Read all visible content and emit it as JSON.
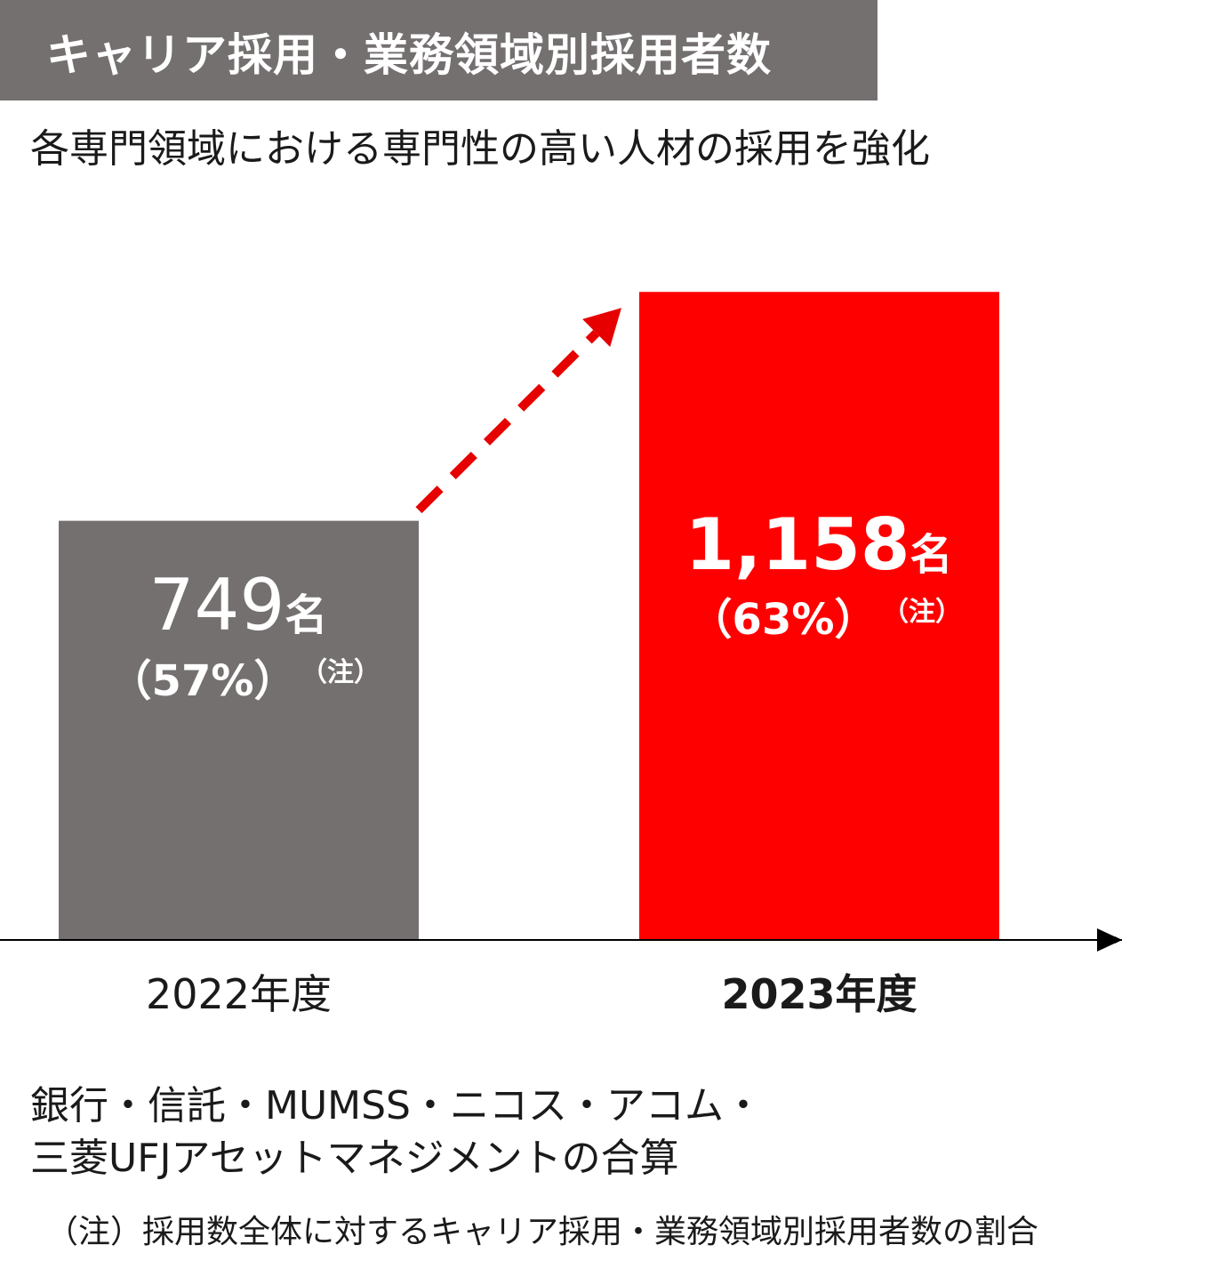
{
  "header": {
    "title": "キャリア採用・業務領域別採用者数",
    "subtitle": "各専門領域における専門性の高い人材の採用を強化"
  },
  "colors": {
    "title_bar": "#757070",
    "bar_2022": "#757070",
    "bar_2023": "#ff0000",
    "arrow": "#e60000",
    "axis": "#000000"
  },
  "chart_data": {
    "type": "bar",
    "categories": [
      "2022年度",
      "2023年度"
    ],
    "values": [
      749,
      1158
    ],
    "value_labels": [
      "749",
      "1,158"
    ],
    "unit": "名",
    "percent_labels": [
      "（57%）",
      "（63%）"
    ],
    "note_marker": "（注）",
    "ylim": [
      0,
      1330
    ],
    "grid": false,
    "trend_arrow": "dashed, from 2022 bar to 2023 bar"
  },
  "footer": {
    "line1": "銀行・信託・MUMSS・ニコス・アコム・",
    "line2": "三菱UFJアセットマネジメントの合算",
    "note": "（注）採用数全体に対するキャリア採用・業務領域別採用者数の割合"
  }
}
